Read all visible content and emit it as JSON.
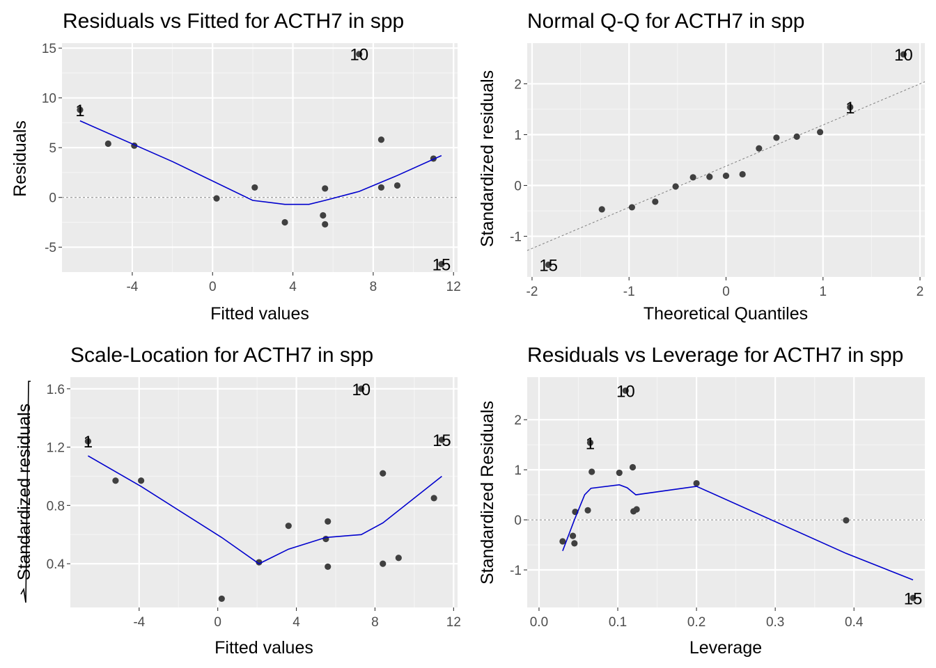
{
  "colors": {
    "panel_bg": "#ebebeb",
    "grid_major": "#ffffff",
    "grid_minor": "#f5f5f5",
    "point": "#404040",
    "smooth": "#0000cd",
    "reference": "#7f7f7f"
  },
  "chart_data": [
    {
      "type": "scatter",
      "title": "Residuals vs Fitted for ACTH7 in spp",
      "xlabel": "Fitted values",
      "ylabel": "Residuals",
      "xlim": [
        -7.5,
        12.2
      ],
      "ylim": [
        -7.5,
        15.5
      ],
      "xticks": [
        -4,
        0,
        4,
        8,
        12
      ],
      "yticks": [
        -5,
        0,
        5,
        10,
        15
      ],
      "grid": true,
      "reference_line": {
        "type": "hline",
        "y": 0
      },
      "points": [
        {
          "x": -6.6,
          "y": 8.8
        },
        {
          "x": -5.2,
          "y": 5.4
        },
        {
          "x": -3.9,
          "y": 5.2
        },
        {
          "x": 0.2,
          "y": -0.1
        },
        {
          "x": 2.1,
          "y": 1.0
        },
        {
          "x": 3.6,
          "y": -2.5
        },
        {
          "x": 5.5,
          "y": -1.8
        },
        {
          "x": 5.6,
          "y": -2.7
        },
        {
          "x": 5.6,
          "y": 0.9
        },
        {
          "x": 7.3,
          "y": 14.4
        },
        {
          "x": 8.4,
          "y": 5.8
        },
        {
          "x": 8.4,
          "y": 1.0
        },
        {
          "x": 9.2,
          "y": 1.2
        },
        {
          "x": 11.0,
          "y": 3.9
        },
        {
          "x": 11.4,
          "y": -6.7
        }
      ],
      "smooth": [
        {
          "x": -6.6,
          "y": 7.7
        },
        {
          "x": -2,
          "y": 3.6
        },
        {
          "x": 2,
          "y": -0.3
        },
        {
          "x": 3.6,
          "y": -0.7
        },
        {
          "x": 4.8,
          "y": -0.7
        },
        {
          "x": 5.6,
          "y": -0.3
        },
        {
          "x": 7.3,
          "y": 0.6
        },
        {
          "x": 9.2,
          "y": 2.2
        },
        {
          "x": 11.4,
          "y": 4.2
        }
      ],
      "point_labels": [
        {
          "text": "10",
          "x": 7.3,
          "y": 14.4
        },
        {
          "text": "1",
          "x": -6.6,
          "y": 8.8
        },
        {
          "text": "15",
          "x": 11.4,
          "y": -6.7
        }
      ]
    },
    {
      "type": "scatter",
      "title": "Normal Q-Q for ACTH7 in spp",
      "xlabel": "Theoretical Quantiles",
      "ylabel": "Standardized residuals",
      "xlim": [
        -2.05,
        2.05
      ],
      "ylim": [
        -1.8,
        2.8
      ],
      "xticks": [
        -2,
        -1,
        0,
        1,
        2
      ],
      "yticks": [
        -1,
        0,
        1,
        2
      ],
      "grid": true,
      "reference_line": {
        "type": "abline",
        "x1": -2.05,
        "y1": -1.28,
        "x2": 2.05,
        "y2": 2.04
      },
      "points": [
        {
          "x": -1.83,
          "y": -1.56
        },
        {
          "x": -1.28,
          "y": -0.47
        },
        {
          "x": -0.97,
          "y": -0.43
        },
        {
          "x": -0.73,
          "y": -0.32
        },
        {
          "x": -0.52,
          "y": -0.02
        },
        {
          "x": -0.34,
          "y": 0.16
        },
        {
          "x": -0.17,
          "y": 0.17
        },
        {
          "x": 0.0,
          "y": 0.19
        },
        {
          "x": 0.17,
          "y": 0.22
        },
        {
          "x": 0.34,
          "y": 0.73
        },
        {
          "x": 0.52,
          "y": 0.94
        },
        {
          "x": 0.73,
          "y": 0.96
        },
        {
          "x": 0.97,
          "y": 1.05
        },
        {
          "x": 1.28,
          "y": 1.54
        },
        {
          "x": 1.83,
          "y": 2.58
        }
      ],
      "point_labels": [
        {
          "text": "10",
          "x": 1.83,
          "y": 2.58
        },
        {
          "text": "1",
          "x": 1.28,
          "y": 1.54
        },
        {
          "text": "15",
          "x": -1.83,
          "y": -1.56
        }
      ]
    },
    {
      "type": "scatter",
      "title": "Scale-Location for ACTH7 in spp",
      "xlabel": "Fitted values",
      "ylabel": "Standardized residuals",
      "xlim": [
        -7.5,
        12.2
      ],
      "ylim": [
        0.1,
        1.68
      ],
      "xticks": [
        -4,
        0,
        4,
        8,
        12
      ],
      "yticks": [
        0.4,
        0.8,
        1.2,
        1.6
      ],
      "ytick_labels": [
        "0.4",
        "0.8",
        "1.2",
        "1.6"
      ],
      "grid": true,
      "points": [
        {
          "x": -6.6,
          "y": 1.24
        },
        {
          "x": -5.2,
          "y": 0.97
        },
        {
          "x": -3.9,
          "y": 0.97
        },
        {
          "x": 0.2,
          "y": 0.16
        },
        {
          "x": 2.1,
          "y": 0.41
        },
        {
          "x": 3.6,
          "y": 0.66
        },
        {
          "x": 5.5,
          "y": 0.57
        },
        {
          "x": 5.6,
          "y": 0.69
        },
        {
          "x": 5.6,
          "y": 0.38
        },
        {
          "x": 7.3,
          "y": 1.6
        },
        {
          "x": 8.4,
          "y": 1.02
        },
        {
          "x": 8.4,
          "y": 0.4
        },
        {
          "x": 9.2,
          "y": 0.44
        },
        {
          "x": 11.0,
          "y": 0.85
        },
        {
          "x": 11.4,
          "y": 1.25
        }
      ],
      "smooth": [
        {
          "x": -6.6,
          "y": 1.14
        },
        {
          "x": -3.9,
          "y": 0.93
        },
        {
          "x": 0.2,
          "y": 0.58
        },
        {
          "x": 2.1,
          "y": 0.4
        },
        {
          "x": 3.6,
          "y": 0.5
        },
        {
          "x": 5.5,
          "y": 0.58
        },
        {
          "x": 7.3,
          "y": 0.6
        },
        {
          "x": 8.4,
          "y": 0.68
        },
        {
          "x": 11.4,
          "y": 1.0
        }
      ],
      "point_labels": [
        {
          "text": "10",
          "x": 7.3,
          "y": 1.6
        },
        {
          "text": "15",
          "x": 11.4,
          "y": 1.25
        },
        {
          "text": "1",
          "x": -6.6,
          "y": 1.24
        }
      ]
    },
    {
      "type": "scatter",
      "title": "Residuals vs Leverage for ACTH7 in spp",
      "xlabel": "Leverage",
      "ylabel": "Standardized Residuals",
      "xlim": [
        -0.015,
        0.49
      ],
      "ylim": [
        -1.75,
        2.85
      ],
      "xticks": [
        0.0,
        0.1,
        0.2,
        0.3,
        0.4
      ],
      "xtick_labels": [
        "0.0",
        "0.1",
        "0.2",
        "0.3",
        "0.4"
      ],
      "yticks": [
        -1,
        0,
        1,
        2
      ],
      "grid": true,
      "reference_line": {
        "type": "hline",
        "y": 0
      },
      "points": [
        {
          "x": 0.03,
          "y": -0.43
        },
        {
          "x": 0.043,
          "y": -0.32
        },
        {
          "x": 0.045,
          "y": -0.47
        },
        {
          "x": 0.046,
          "y": 0.16
        },
        {
          "x": 0.062,
          "y": 0.19
        },
        {
          "x": 0.065,
          "y": 1.54
        },
        {
          "x": 0.067,
          "y": 0.96
        },
        {
          "x": 0.102,
          "y": 0.94
        },
        {
          "x": 0.11,
          "y": 2.58
        },
        {
          "x": 0.119,
          "y": 1.05
        },
        {
          "x": 0.12,
          "y": 0.17
        },
        {
          "x": 0.124,
          "y": 0.21
        },
        {
          "x": 0.2,
          "y": 0.73
        },
        {
          "x": 0.39,
          "y": -0.01
        },
        {
          "x": 0.475,
          "y": -1.56
        }
      ],
      "smooth": [
        {
          "x": 0.03,
          "y": -0.62
        },
        {
          "x": 0.045,
          "y": 0.0
        },
        {
          "x": 0.058,
          "y": 0.5
        },
        {
          "x": 0.066,
          "y": 0.63
        },
        {
          "x": 0.102,
          "y": 0.7
        },
        {
          "x": 0.112,
          "y": 0.64
        },
        {
          "x": 0.123,
          "y": 0.5
        },
        {
          "x": 0.2,
          "y": 0.67
        },
        {
          "x": 0.39,
          "y": -0.67
        },
        {
          "x": 0.475,
          "y": -1.2
        }
      ],
      "point_labels": [
        {
          "text": "10",
          "x": 0.11,
          "y": 2.58
        },
        {
          "text": "1",
          "x": 0.065,
          "y": 1.54
        },
        {
          "text": "15",
          "x": 0.475,
          "y": -1.56
        }
      ]
    }
  ]
}
